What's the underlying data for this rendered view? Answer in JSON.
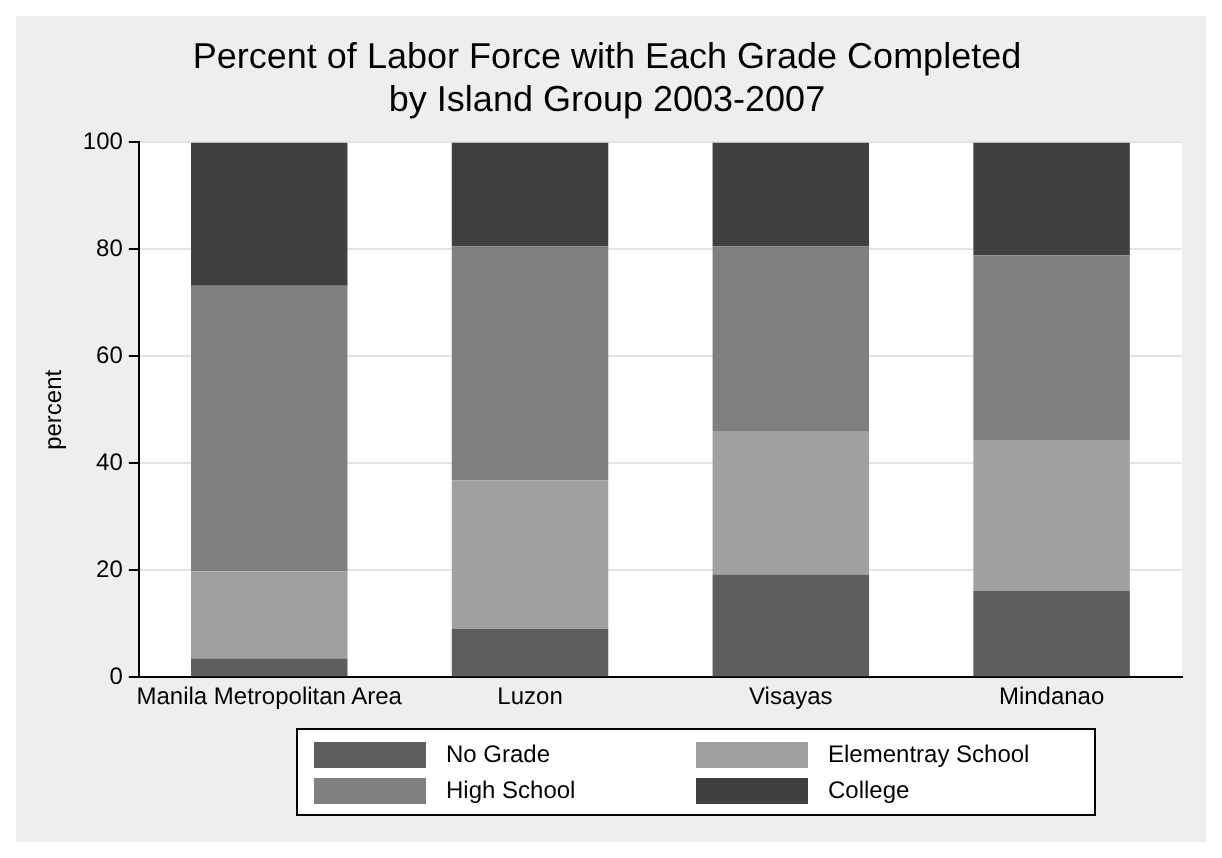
{
  "chart_data": {
    "type": "bar",
    "title": "Percent of Labor Force with Each Grade Completed\nby Island Group 2003-2007",
    "ylabel": "percent",
    "categories": [
      "Manila Metropolitan Area",
      "Luzon",
      "Visayas",
      "Mindanao"
    ],
    "stacked": true,
    "series": [
      {
        "name": "No Grade",
        "color": "#5e5e5e",
        "values": [
          3.5,
          9,
          19.2,
          16.1
        ]
      },
      {
        "name": "Elementray School",
        "color": "#a0a0a0",
        "values": [
          16.3,
          27.8,
          26.7,
          28.1
        ]
      },
      {
        "name": "High School",
        "color": "#7f7f7f",
        "values": [
          53.4,
          43.8,
          34.7,
          34.7
        ]
      },
      {
        "name": "College",
        "color": "#404040",
        "values": [
          26.8,
          19.4,
          19.4,
          21.1
        ]
      }
    ],
    "ylim": [
      0,
      100
    ],
    "yticks": [
      0,
      20,
      40,
      60,
      80,
      100
    ],
    "grid": "y",
    "legend": "bottom"
  }
}
